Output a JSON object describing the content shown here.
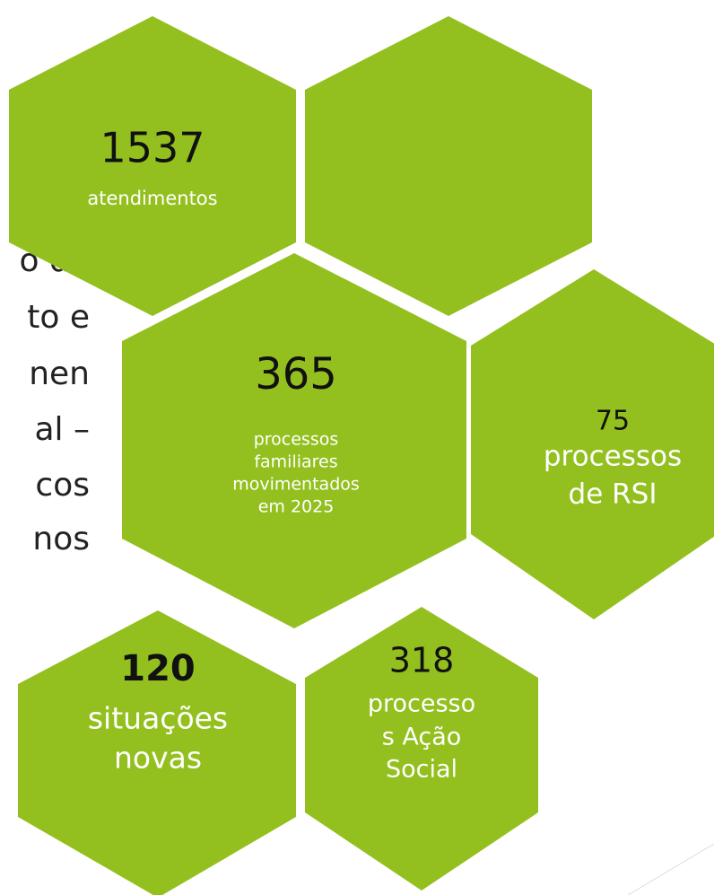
{
  "background_text": [
    "o de",
    "to e",
    "nen",
    "al –",
    "cos",
    "nos"
  ],
  "hexagons": [
    {
      "value": "1537",
      "label": [
        "atendimentos"
      ]
    },
    {
      "value": "365",
      "label": [
        "processos",
        "familiares",
        "movimentados",
        "em 2025"
      ]
    },
    {
      "value": "75",
      "label": [
        "processos",
        "de RSI"
      ]
    },
    {
      "value": "120",
      "label": [
        "situações",
        "novas"
      ]
    },
    {
      "value": "318",
      "label": [
        "processo",
        "s Ação",
        "Social"
      ]
    }
  ]
}
